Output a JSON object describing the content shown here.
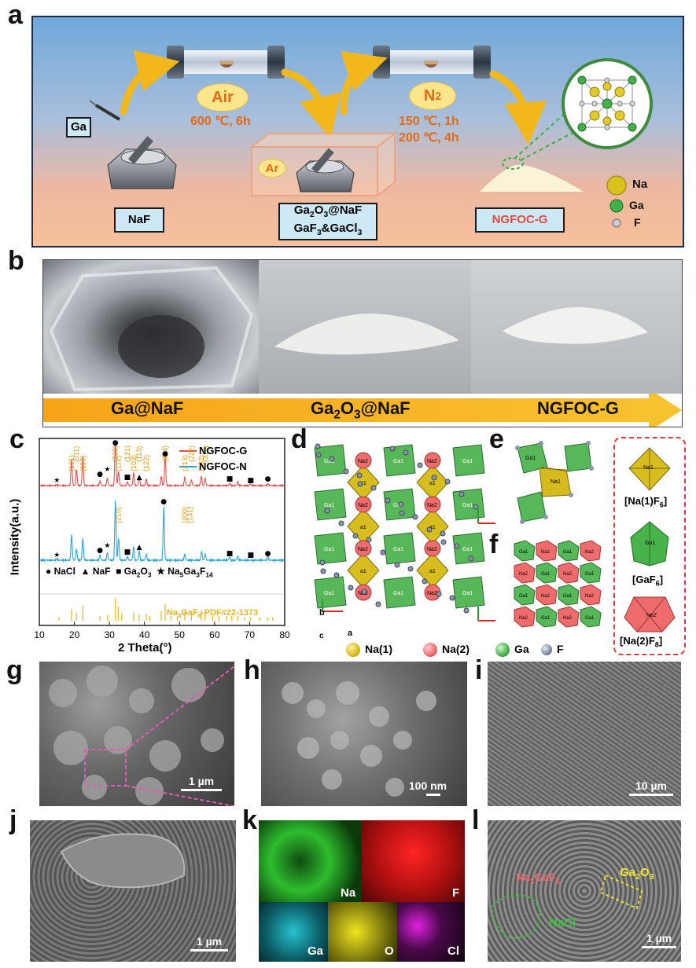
{
  "panels": {
    "a": "a",
    "b": "b",
    "c": "c",
    "d": "d",
    "e": "e",
    "f": "f",
    "g": "g",
    "h": "h",
    "i": "i",
    "j": "j",
    "k": "k",
    "l": "l"
  },
  "panel_a": {
    "ga_label": "Ga",
    "air": "Air",
    "air_cond": "600 ℃, 6h",
    "ar": "Ar",
    "n2_text": "N",
    "n2_sub": "2",
    "n2_cond1": "150 ℃, 1h",
    "n2_cond2": "200 ℃, 4h",
    "naf": "NaF",
    "mid_line1_a": "Ga",
    "mid_line1_sub1": "2",
    "mid_line1_b": "O",
    "mid_line1_sub2": "3",
    "mid_line1_c": "@NaF",
    "mid_line2_a": "GaF",
    "mid_line2_sub1": "3",
    "mid_line2_b": "&GaCl",
    "mid_line2_sub2": "3",
    "product": "NGFOC-G",
    "legend": [
      "Na",
      "Ga",
      "F"
    ],
    "colors": {
      "Na": "#d8c21c",
      "Ga": "#3fb34a",
      "F": "#c9ccd4"
    }
  },
  "panel_b": {
    "label1": "Ga@NaF",
    "label2_a": "Ga",
    "label2_sub1": "2",
    "label2_b": "O",
    "label2_sub2": "3",
    "label2_c": "@NaF",
    "label3": "NGFOC-G"
  },
  "chart_data": {
    "type": "line",
    "xlabel": "2 Theta(°)",
    "ylabel": "Intensity(a.u.)",
    "xlim": [
      10,
      80
    ],
    "xticks": [
      10,
      20,
      30,
      40,
      50,
      60,
      70,
      80
    ],
    "series": [
      {
        "name": "NGFOC-G",
        "color": "#e0504f",
        "peaks": [
          [
            15,
            0.02
          ],
          [
            19.2,
            0.55
          ],
          [
            20.6,
            0.35
          ],
          [
            22.4,
            0.62
          ],
          [
            27.3,
            0.1
          ],
          [
            29.4,
            0.15
          ],
          [
            31.7,
            0.95
          ],
          [
            32.6,
            0.3
          ],
          [
            35.1,
            0.08
          ],
          [
            36.9,
            0.28
          ],
          [
            38.5,
            0.18
          ],
          [
            40.5,
            0.14
          ],
          [
            44.8,
            0.2
          ],
          [
            45.9,
            0.62
          ],
          [
            51.5,
            0.18
          ],
          [
            53.4,
            0.12
          ],
          [
            56.2,
            0.2
          ],
          [
            57.3,
            0.16
          ],
          [
            64.3,
            0.05
          ],
          [
            66.6,
            0.08
          ],
          [
            70.3,
            0.03
          ],
          [
            75.2,
            0.04
          ]
        ]
      },
      {
        "name": "NGFOC-N",
        "color": "#2aa6d8",
        "peaks": [
          [
            15,
            0.02
          ],
          [
            19.2,
            0.4
          ],
          [
            20.6,
            0.18
          ],
          [
            22.4,
            0.35
          ],
          [
            27.3,
            0.08
          ],
          [
            29.4,
            0.12
          ],
          [
            31.7,
            0.95
          ],
          [
            32.6,
            0.35
          ],
          [
            35.1,
            0.06
          ],
          [
            36.9,
            0.22
          ],
          [
            38.5,
            0.14
          ],
          [
            40.5,
            0.1
          ],
          [
            45.5,
            0.85
          ],
          [
            51.5,
            0.1
          ],
          [
            56.3,
            0.14
          ],
          [
            57.3,
            0.1
          ],
          [
            64.3,
            0.05
          ],
          [
            66.6,
            0.06
          ],
          [
            75.2,
            0.06
          ]
        ]
      }
    ],
    "reference": {
      "name": "Na3GaF6-PDF#22-1373",
      "label_a": "Na",
      "label_sub1": "3",
      "label_b": "GaF",
      "label_sub2": "6",
      "label_c": "-PDF#22-1373",
      "color": "#e8b520",
      "sticks": [
        [
          15.6,
          0.15
        ],
        [
          19.2,
          0.5
        ],
        [
          20.6,
          0.35
        ],
        [
          22.4,
          0.65
        ],
        [
          27.3,
          0.2
        ],
        [
          29.5,
          0.25
        ],
        [
          31.7,
          0.95
        ],
        [
          32.5,
          0.6
        ],
        [
          33.5,
          0.3
        ],
        [
          36.9,
          0.35
        ],
        [
          38.5,
          0.25
        ],
        [
          40.5,
          0.3
        ],
        [
          41.5,
          0.2
        ],
        [
          44.8,
          0.4
        ],
        [
          45.9,
          0.7
        ],
        [
          47.5,
          0.2
        ],
        [
          49.4,
          0.2
        ],
        [
          51.5,
          0.4
        ],
        [
          53.4,
          0.3
        ],
        [
          56.2,
          0.45
        ],
        [
          57.3,
          0.35
        ],
        [
          59.5,
          0.2
        ],
        [
          61.2,
          0.2
        ],
        [
          63.4,
          0.2
        ],
        [
          64.9,
          0.2
        ],
        [
          66.6,
          0.2
        ],
        [
          68.6,
          0.15
        ],
        [
          70.3,
          0.15
        ],
        [
          72.9,
          0.15
        ],
        [
          75.1,
          0.15
        ],
        [
          76.6,
          0.15
        ]
      ]
    },
    "hkl": [
      [
        19.2,
        "(101)"
      ],
      [
        20.6,
        "(011)"
      ],
      [
        22.4,
        "(110)"
      ],
      [
        31.7,
        "(020)"
      ],
      [
        32.6,
        "(112)"
      ],
      [
        35.1,
        "(121)"
      ],
      [
        36.9,
        "(103)"
      ],
      [
        38.5,
        "(113)"
      ],
      [
        40.5,
        "(122)"
      ],
      [
        45.9,
        "(004)"
      ],
      [
        51.5,
        "(213)"
      ],
      [
        53.4,
        "(222)"
      ],
      [
        56.2,
        "(132)"
      ],
      [
        57.3,
        "(312)"
      ],
      [
        32.5,
        "(210)"
      ],
      [
        51.5,
        "(300)"
      ],
      [
        53.0,
        "(131)"
      ]
    ],
    "legend_markers": {
      "nacl": "NaCl",
      "naf": "NaF",
      "ga2o3_a": "Ga",
      "ga2o3_sub1": "2",
      "ga2o3_b": "O",
      "ga2o3_sub2": "3",
      "na5_a": "Na",
      "na5_sub1": "5",
      "na5_b": "Ga",
      "na5_sub2": "3",
      "na5_c": "F",
      "na5_sub3": "14"
    }
  },
  "panel_d": {
    "atoms": [
      "Na(1)",
      "Na(2)",
      "Ga",
      "F"
    ],
    "atom_colors": [
      "#d8bd1e",
      "#ee6c6c",
      "#47b34a",
      "#7d8aa0"
    ],
    "tags": [
      "Ga1",
      "Na2",
      "a1"
    ],
    "axes": {
      "b": "b",
      "c": "c",
      "a": "a"
    }
  },
  "panel_e": {
    "tags": [
      "Ga1",
      "Na1"
    ]
  },
  "panel_f": {
    "tags": [
      "Ga1",
      "Na2"
    ]
  },
  "polyhedra": {
    "p1_a": "[Na(1)F",
    "p1_sub": "6",
    "p1_b": "]",
    "p2_a": "[GaF",
    "p2_sub": "6",
    "p2_b": "]",
    "p3_a": "[Na(2)F",
    "p3_sub": "8",
    "p3_b": "]",
    "inner1": "Na1",
    "inner2": "Ga1",
    "inner3": "Na2"
  },
  "sem": {
    "g_scale": "1 µm",
    "h_scale": "100 nm",
    "i_scale": "10 µm",
    "j_scale": "1 µm",
    "l_scale": "1 µm",
    "k_labels": [
      "Na",
      "F",
      "Ga",
      "O",
      "Cl"
    ],
    "l_a": "Na",
    "l_sub1": "3",
    "l_b": "GaF",
    "l_sub2": "6",
    "l_ga_a": "Ga",
    "l_ga_sub1": "2",
    "l_ga_b": "O",
    "l_ga_sub2": "3",
    "l_nacl": "NaCl"
  }
}
